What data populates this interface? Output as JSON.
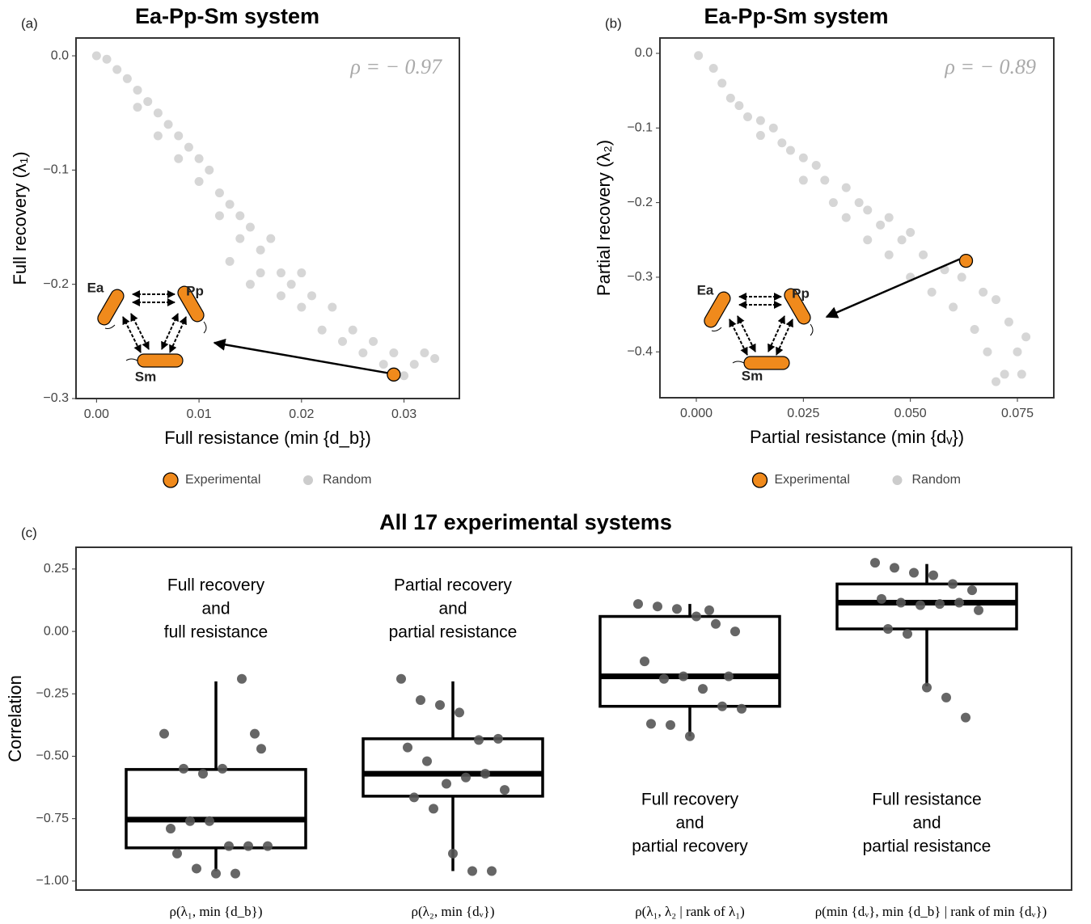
{
  "chart_data": [
    {
      "type": "scatter",
      "panel_label": "(a)",
      "title": "Ea-Pp-Sm system",
      "xlabel": "Full resistance (min {d_b})",
      "ylabel": "Full recovery (λ₁)",
      "annotation": "ρ = − 0.97",
      "inset_labels": [
        "Ea",
        "Pp",
        "Sm"
      ],
      "xlim": [
        -0.002,
        0.0354
      ],
      "ylim": [
        -0.3,
        0.0156
      ],
      "xticks": [
        {
          "value": 0,
          "label": "0.00"
        },
        {
          "value": 0.01,
          "label": "0.01"
        },
        {
          "value": 0.02,
          "label": "0.02"
        },
        {
          "value": 0.03,
          "label": "0.03"
        }
      ],
      "yticks": [
        {
          "value": 0,
          "label": "0.0"
        },
        {
          "value": -0.1,
          "label": "−0.1"
        },
        {
          "value": -0.2,
          "label": "−0.2"
        },
        {
          "value": -0.3,
          "label": "−0.3"
        }
      ],
      "series": [
        {
          "name": "Random",
          "color": "#cccccc",
          "x": [
            0,
            0.001,
            0.002,
            0.003,
            0.004,
            0.004,
            0.005,
            0.006,
            0.006,
            0.007,
            0.008,
            0.008,
            0.009,
            0.01,
            0.01,
            0.011,
            0.012,
            0.012,
            0.013,
            0.014,
            0.014,
            0.015,
            0.016,
            0.016,
            0.017,
            0.018,
            0.018,
            0.019,
            0.02,
            0.02,
            0.021,
            0.022,
            0.023,
            0.024,
            0.025,
            0.026,
            0.027,
            0.028,
            0.03,
            0.031,
            0.032,
            0.033,
            0.029,
            0.015,
            0.013
          ],
          "y": [
            0,
            -0.003,
            -0.012,
            -0.02,
            -0.03,
            -0.045,
            -0.04,
            -0.05,
            -0.07,
            -0.06,
            -0.07,
            -0.09,
            -0.08,
            -0.09,
            -0.11,
            -0.1,
            -0.12,
            -0.14,
            -0.13,
            -0.14,
            -0.16,
            -0.15,
            -0.17,
            -0.19,
            -0.16,
            -0.19,
            -0.21,
            -0.2,
            -0.19,
            -0.22,
            -0.21,
            -0.24,
            -0.22,
            -0.25,
            -0.24,
            -0.26,
            -0.25,
            -0.27,
            -0.28,
            -0.27,
            -0.26,
            -0.265,
            -0.26,
            -0.2,
            -0.18
          ]
        },
        {
          "name": "Experimental",
          "color": "#f08a1c",
          "x": [
            0.029
          ],
          "y": [
            -0.279
          ]
        }
      ]
    },
    {
      "type": "scatter",
      "panel_label": "(b)",
      "title": "Ea-Pp-Sm system",
      "xlabel": "Partial resistance (min {dᵥ})",
      "ylabel": "Partial recovery (λ₂)",
      "annotation": "ρ = − 0.89",
      "inset_labels": [
        "Ea",
        "Pp",
        "Sm"
      ],
      "xlim": [
        -0.0085,
        0.0835
      ],
      "ylim": [
        -0.4615,
        0.0206
      ],
      "xticks": [
        {
          "value": 0,
          "label": "0.000"
        },
        {
          "value": 0.025,
          "label": "0.025"
        },
        {
          "value": 0.05,
          "label": "0.050"
        },
        {
          "value": 0.075,
          "label": "0.075"
        }
      ],
      "yticks": [
        {
          "value": 0,
          "label": "0.0"
        },
        {
          "value": -0.1,
          "label": "−0.1"
        },
        {
          "value": -0.2,
          "label": "−0.2"
        },
        {
          "value": -0.3,
          "label": "−0.3"
        },
        {
          "value": -0.4,
          "label": "−0.4"
        }
      ],
      "series": [
        {
          "name": "Random",
          "color": "#cccccc",
          "x": [
            0.0005,
            0.004,
            0.006,
            0.008,
            0.01,
            0.012,
            0.015,
            0.015,
            0.018,
            0.02,
            0.022,
            0.025,
            0.025,
            0.028,
            0.03,
            0.032,
            0.035,
            0.035,
            0.038,
            0.04,
            0.04,
            0.043,
            0.045,
            0.045,
            0.048,
            0.05,
            0.05,
            0.053,
            0.055,
            0.058,
            0.06,
            0.062,
            0.065,
            0.067,
            0.068,
            0.07,
            0.072,
            0.073,
            0.075,
            0.077,
            0.076,
            0.07
          ],
          "y": [
            -0.003,
            -0.02,
            -0.04,
            -0.06,
            -0.07,
            -0.085,
            -0.09,
            -0.11,
            -0.1,
            -0.12,
            -0.13,
            -0.14,
            -0.17,
            -0.15,
            -0.17,
            -0.2,
            -0.18,
            -0.22,
            -0.2,
            -0.21,
            -0.25,
            -0.23,
            -0.22,
            -0.27,
            -0.25,
            -0.24,
            -0.3,
            -0.27,
            -0.32,
            -0.29,
            -0.34,
            -0.3,
            -0.37,
            -0.32,
            -0.4,
            -0.33,
            -0.43,
            -0.36,
            -0.4,
            -0.38,
            -0.43,
            -0.44
          ]
        },
        {
          "name": "Experimental",
          "color": "#f08a1c",
          "x": [
            0.063
          ],
          "y": [
            -0.278
          ]
        }
      ]
    },
    {
      "type": "box",
      "panel_label": "(c)",
      "title": "All 17 experimental systems",
      "ylabel": "Correlation",
      "ylim": [
        -1.036,
        0.337
      ],
      "yticks": [
        {
          "value": 0.25,
          "label": "0.25"
        },
        {
          "value": 0,
          "label": "0.00"
        },
        {
          "value": -0.25,
          "label": "−0.25"
        },
        {
          "value": -0.5,
          "label": "−0.50"
        },
        {
          "value": -0.75,
          "label": "−0.75"
        },
        {
          "value": -1,
          "label": "−1.00"
        }
      ],
      "categories": [
        "ρ(λ₁, min {d_b})",
        "ρ(λ₂, min {dᵥ})",
        "ρ(λ₁, λ₂ | rank of λ₁)",
        "ρ(min {dᵥ}, min {d_b} | rank of min {dᵥ})"
      ],
      "notes": [
        [
          "Full recovery",
          "and",
          "full resistance"
        ],
        [
          "Partial recovery",
          "and",
          "partial resistance"
        ],
        [
          "Full recovery",
          "and",
          "partial recovery"
        ],
        [
          "Full resistance",
          "and",
          "partial resistance"
        ]
      ],
      "boxes": [
        {
          "q1": -0.867,
          "median": -0.754,
          "q3": -0.553,
          "whisker_low": -0.96,
          "whisker_high": -0.2,
          "points": [
            -0.41,
            -0.55,
            -0.57,
            -0.55,
            -0.19,
            -0.47,
            -0.79,
            -0.76,
            -0.76,
            -0.86,
            -0.86,
            -0.86,
            -0.89,
            -0.95,
            -0.97,
            -0.97,
            -0.41
          ]
        },
        {
          "q1": -0.66,
          "median": -0.57,
          "q3": -0.43,
          "whisker_low": -0.96,
          "whisker_high": -0.2,
          "points": [
            -0.19,
            -0.275,
            -0.295,
            -0.325,
            -0.435,
            -0.43,
            -0.465,
            -0.52,
            -0.61,
            -0.585,
            -0.57,
            -0.635,
            -0.665,
            -0.71,
            -0.89,
            -0.96,
            -0.96
          ]
        },
        {
          "q1": -0.3,
          "median": -0.18,
          "q3": 0.06,
          "whisker_low": -0.42,
          "whisker_high": 0.11,
          "points": [
            0.11,
            0.1,
            0.09,
            0.06,
            0.03,
            0,
            -0.12,
            -0.19,
            -0.18,
            -0.23,
            -0.3,
            -0.31,
            -0.37,
            -0.375,
            -0.42,
            0.085,
            -0.18
          ]
        },
        {
          "q1": 0.01,
          "median": 0.115,
          "q3": 0.19,
          "whisker_low": -0.22,
          "whisker_high": 0.27,
          "points": [
            0.275,
            0.255,
            0.235,
            0.225,
            0.19,
            0.165,
            0.13,
            0.115,
            0.105,
            0.11,
            0.115,
            0.085,
            0.01,
            -0.01,
            -0.225,
            -0.265,
            -0.345
          ]
        }
      ]
    }
  ]
}
